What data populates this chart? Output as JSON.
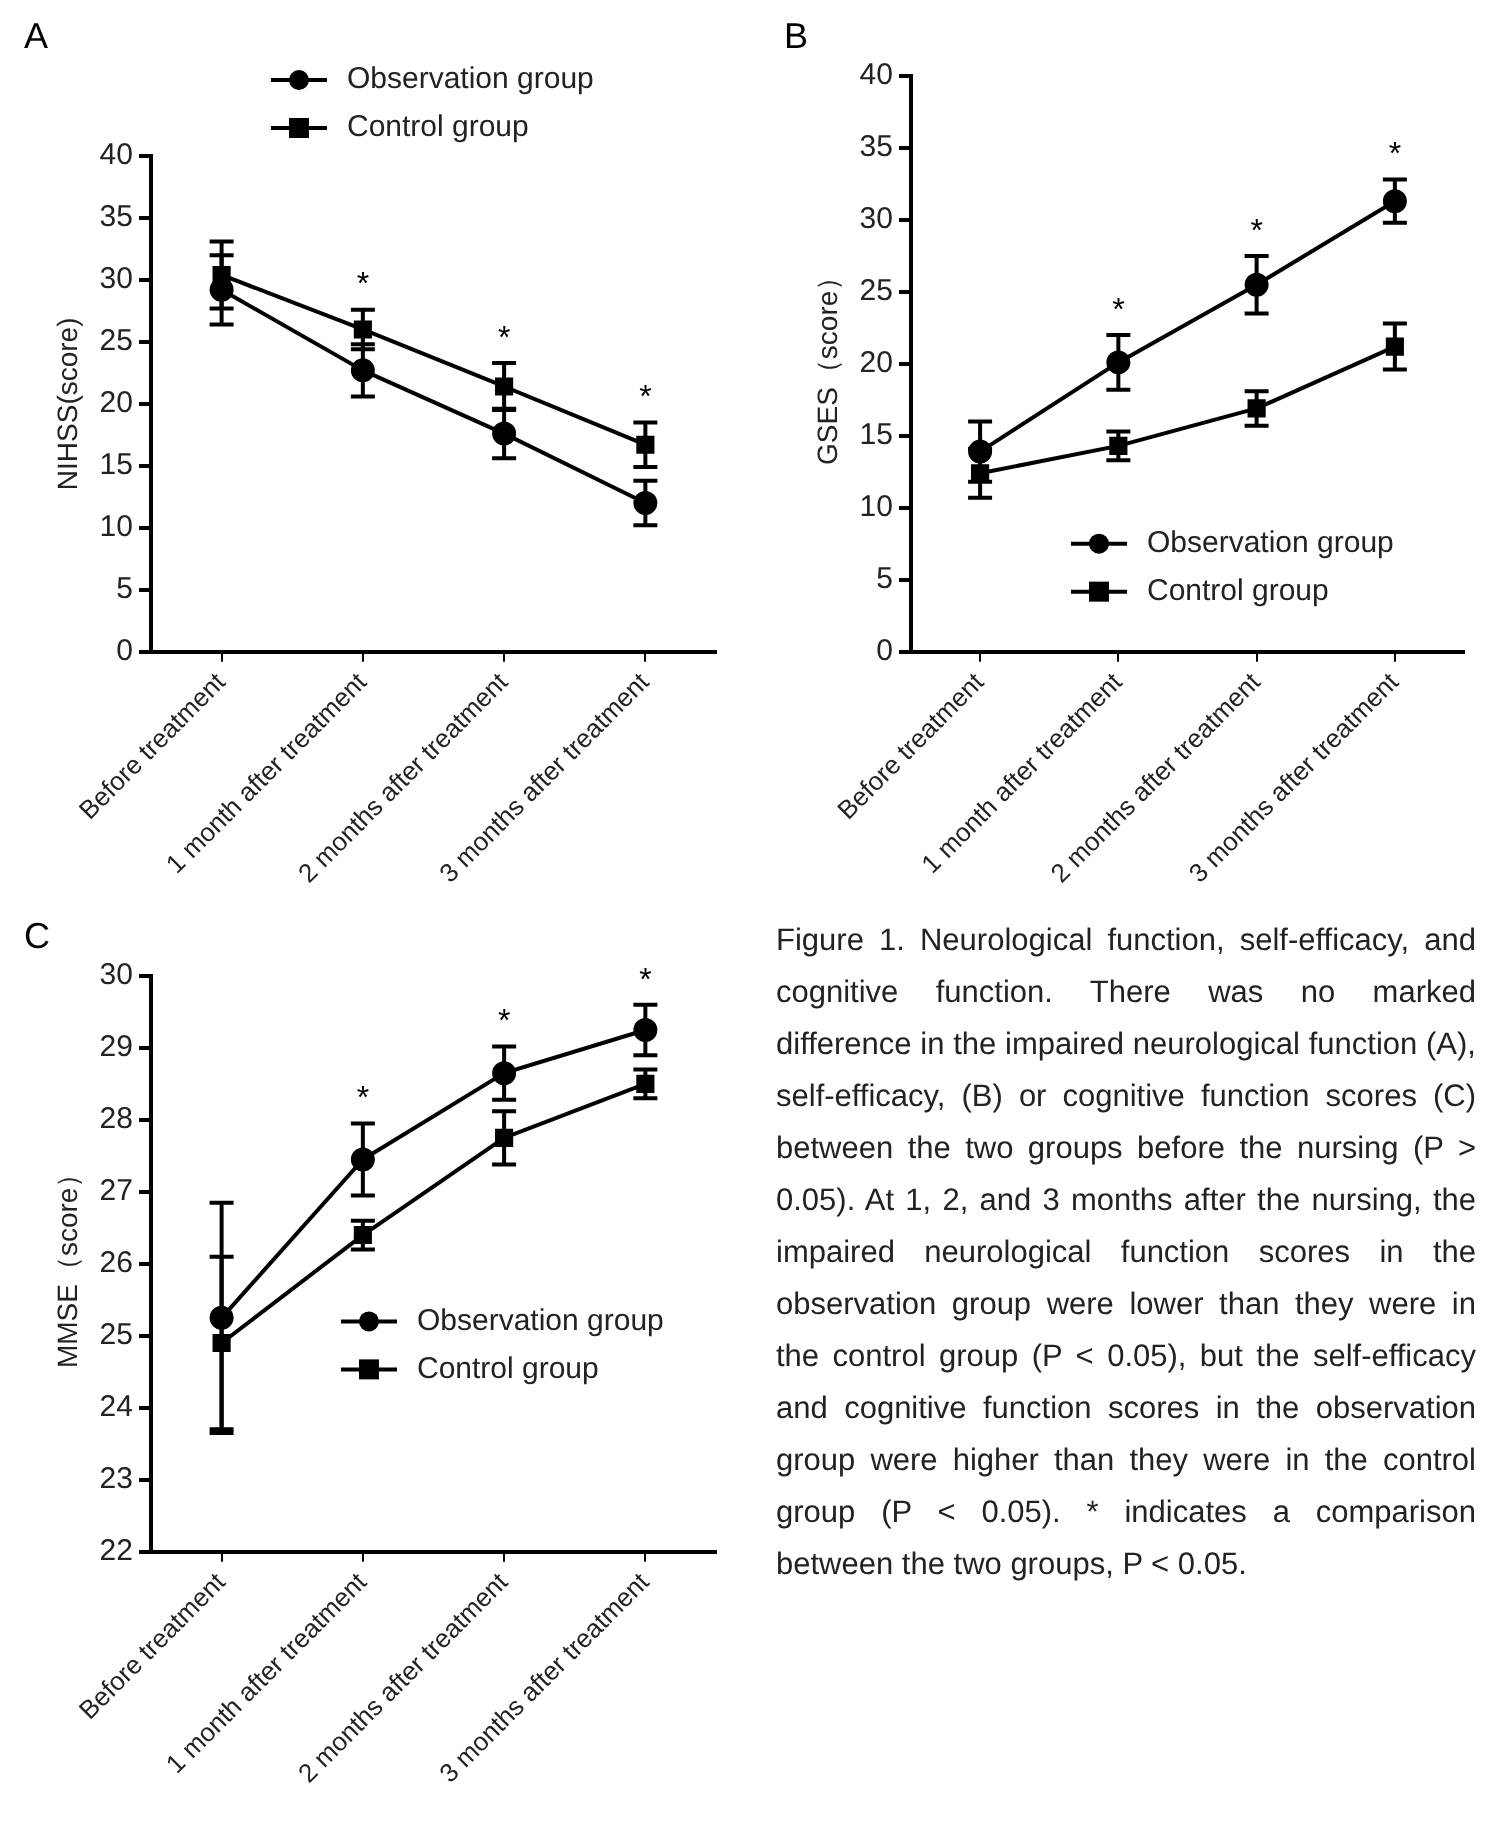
{
  "chart_data": [
    {
      "type": "line",
      "title": "A",
      "ylabel": "NIHSS(score)",
      "categories": [
        "Before treatment",
        "1 month after treatment",
        "2 months after treatment",
        "3 months after treatment"
      ],
      "ylim": [
        0,
        40
      ],
      "yticks": [
        0,
        5,
        10,
        15,
        20,
        25,
        30,
        35,
        40
      ],
      "grid": false,
      "legend": "top",
      "line_style": "solid",
      "series": [
        {
          "name": "Observation group",
          "color": "#000000",
          "marker": "circle",
          "values": [
            29.2,
            22.7,
            17.6,
            12.0
          ],
          "errors": [
            2.8,
            2.1,
            2.0,
            1.8
          ]
        },
        {
          "name": "Control group",
          "color": "#000000",
          "marker": "square",
          "values": [
            30.4,
            26.0,
            21.4,
            16.7
          ],
          "errors": [
            2.7,
            1.6,
            1.9,
            1.8
          ]
        }
      ],
      "annotations": [
        "*",
        "*",
        "*"
      ]
    },
    {
      "type": "line",
      "title": "B",
      "ylabel": "GSES（score）",
      "categories": [
        "Before treatment",
        "1 month after treatment",
        "2 months after treatment",
        "3 months after treatment"
      ],
      "ylim": [
        0,
        40
      ],
      "yticks": [
        0,
        5,
        10,
        15,
        20,
        25,
        30,
        35,
        40
      ],
      "grid": false,
      "legend": "bottom right",
      "line_style": "solid",
      "series": [
        {
          "name": "Observation group",
          "color": "#000000",
          "marker": "circle",
          "values": [
            13.9,
            20.1,
            25.5,
            31.3
          ],
          "errors": [
            2.1,
            1.9,
            2.0,
            1.5
          ]
        },
        {
          "name": "Control group",
          "color": "#000000",
          "marker": "square",
          "values": [
            12.4,
            14.3,
            16.9,
            21.2
          ],
          "errors": [
            1.7,
            1.0,
            1.2,
            1.6
          ]
        }
      ],
      "annotations": [
        "*",
        "*",
        "*"
      ]
    },
    {
      "type": "line",
      "title": "C",
      "ylabel": "MMSE（score）",
      "categories": [
        "Before treatment",
        "1 month after treatment",
        "2 months after treatment",
        "3 months after treatment"
      ],
      "ylim": [
        22,
        30
      ],
      "yticks": [
        22,
        23,
        24,
        25,
        26,
        27,
        28,
        29,
        30
      ],
      "grid": false,
      "legend": "right",
      "line_style": "solid",
      "series": [
        {
          "name": "Observation group",
          "color": "#000000",
          "marker": "circle",
          "values": [
            25.25,
            27.45,
            28.65,
            29.25
          ],
          "errors": [
            1.6,
            0.5,
            0.37,
            0.35
          ]
        },
        {
          "name": "Control group",
          "color": "#000000",
          "marker": "square",
          "values": [
            24.9,
            26.4,
            27.75,
            28.5
          ],
          "errors": [
            1.2,
            0.2,
            0.37,
            0.2
          ]
        }
      ],
      "annotations": [
        "*",
        "*",
        "*"
      ]
    },
    {
      "type": "other",
      "annotations": [
        "Figure 1. Neurological function, self-efficacy, and cognitive function. There was no marked difference in the impaired neurological function (A), self-efficacy, (B) or cognitive function scores (C) between the two groups before the nursing (P > 0.05). At 1, 2, and 3 months after the nursing, the impaired neurological function scores in the observation group were lower than they were in the control group (P < 0.05), but the self-efficacy and cognitive function scores in the observation group were higher than they were in the control group (P < 0.05). * indicates a comparison between the two groups, P < 0.05."
      ]
    }
  ]
}
